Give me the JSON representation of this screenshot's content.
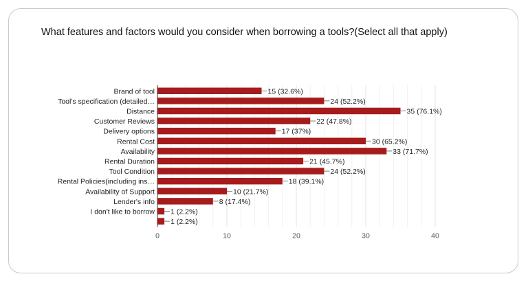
{
  "chart_data": {
    "type": "bar",
    "orientation": "horizontal",
    "title": "What features and factors would you consider when borrowing a tools?(Select all that apply)",
    "categories": [
      "Brand of tool",
      "Tool's specification (detailed…",
      "Distance",
      "Customer Reviews",
      "Delivery options",
      "Rental Cost",
      "Availability",
      "Rental Duration",
      "Tool Condition",
      "Rental Policies(including ins…",
      "Availability of Support",
      "Lender's info",
      "I don't like to borrow",
      ""
    ],
    "values": [
      15,
      24,
      35,
      22,
      17,
      30,
      33,
      21,
      24,
      18,
      10,
      8,
      1,
      1
    ],
    "data_labels": [
      "15 (32.6%)",
      "24 (52.2%)",
      "35 (76.1%)",
      "22 (47.8%)",
      "17 (37%)",
      "30 (65.2%)",
      "33 (71.7%)",
      "21 (45.7%)",
      "24 (52.2%)",
      "18 (39.1%)",
      "10 (21.7%)",
      "8 (17.4%)",
      "1 (2.2%)",
      "1 (2.2%)"
    ],
    "xlim": [
      0,
      40
    ],
    "xticks": [
      "0",
      "10",
      "20",
      "30",
      "40"
    ],
    "bar_color": "#a61c1c",
    "grid": true
  }
}
